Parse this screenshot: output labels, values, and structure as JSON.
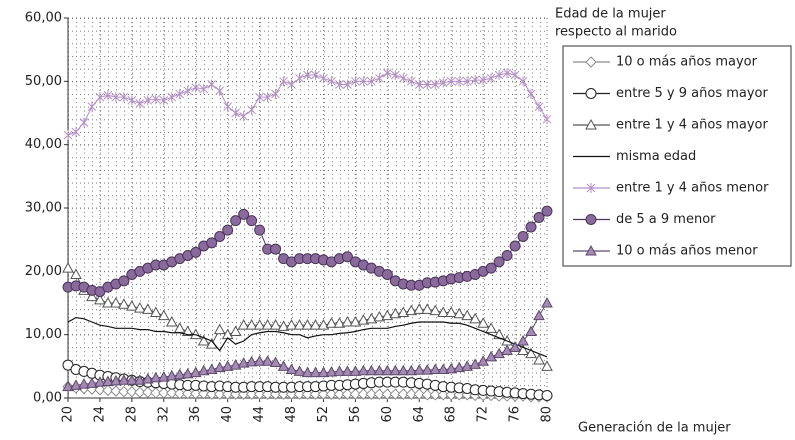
{
  "chart_data": {
    "type": "line",
    "legend_title": [
      "Edad de la mujer",
      "respecto al marido"
    ],
    "x_label": "Generación de la mujer",
    "x": [
      1920,
      1921,
      1922,
      1923,
      1924,
      1925,
      1926,
      1927,
      1928,
      1929,
      1930,
      1931,
      1932,
      1933,
      1934,
      1935,
      1936,
      1937,
      1938,
      1939,
      1940,
      1941,
      1942,
      1943,
      1944,
      1945,
      1946,
      1947,
      1948,
      1949,
      1950,
      1951,
      1952,
      1953,
      1954,
      1955,
      1956,
      1957,
      1958,
      1959,
      1960,
      1961,
      1962,
      1963,
      1964,
      1965,
      1966,
      1967,
      1968,
      1969,
      1970,
      1971,
      1972,
      1973,
      1974,
      1975,
      1976,
      1977,
      1978,
      1979,
      1980
    ],
    "xlim": [
      1920,
      1980
    ],
    "xticks": [
      {
        "value": 1920,
        "label": "20"
      },
      {
        "value": 1924,
        "label": "24"
      },
      {
        "value": 1928,
        "label": "28"
      },
      {
        "value": 1932,
        "label": "32"
      },
      {
        "value": 1936,
        "label": "36"
      },
      {
        "value": 1940,
        "label": "40"
      },
      {
        "value": 1944,
        "label": "44"
      },
      {
        "value": 1948,
        "label": "48"
      },
      {
        "value": 1952,
        "label": "52"
      },
      {
        "value": 1956,
        "label": "56"
      },
      {
        "value": 1960,
        "label": "60"
      },
      {
        "value": 1964,
        "label": "64"
      },
      {
        "value": 1968,
        "label": "68"
      },
      {
        "value": 1972,
        "label": "72"
      },
      {
        "value": 1976,
        "label": "76"
      },
      {
        "value": 1980,
        "label": "80"
      }
    ],
    "ylim": [
      0,
      60
    ],
    "yticks": [
      {
        "value": 0,
        "label": "0,00"
      },
      {
        "value": 10,
        "label": "10,00"
      },
      {
        "value": 20,
        "label": "20,00"
      },
      {
        "value": 30,
        "label": "30,00"
      },
      {
        "value": 40,
        "label": "40,00"
      },
      {
        "value": 50,
        "label": "50,00"
      },
      {
        "value": 60,
        "label": "60,00"
      }
    ],
    "grid": true,
    "legend": "right",
    "series": [
      {
        "name": "10 o más años mayor",
        "color": "#8c8c8c",
        "marker": "diamond",
        "fill": "#ffffff",
        "values": [
          1.8,
          1.6,
          1.5,
          1.4,
          1.3,
          1.2,
          1.1,
          1,
          1,
          0.9,
          0.9,
          0.8,
          0.8,
          0.8,
          0.7,
          0.7,
          0.7,
          0.7,
          0.6,
          0.6,
          0.6,
          0.6,
          0.6,
          0.6,
          0.6,
          0.6,
          0.6,
          0.6,
          0.6,
          0.6,
          0.6,
          0.6,
          0.6,
          0.6,
          0.6,
          0.6,
          0.6,
          0.6,
          0.6,
          0.6,
          0.6,
          0.6,
          0.6,
          0.6,
          0.6,
          0.5,
          0.5,
          0.5,
          0.5,
          0.5,
          0.5,
          0.4,
          0.4,
          0.4,
          0.3,
          0.3,
          0.3,
          0.3,
          0.2,
          0.2,
          0.2
        ]
      },
      {
        "name": "entre 5 y 9 años mayor",
        "color": "#222222",
        "marker": "circle",
        "fill": "#ffffff",
        "values": [
          5.2,
          4.5,
          4.2,
          3.9,
          3.6,
          3.4,
          3.2,
          3,
          2.8,
          2.6,
          2.5,
          2.4,
          2.3,
          2.2,
          2.1,
          2,
          2,
          1.9,
          1.8,
          1.9,
          1.8,
          1.7,
          1.7,
          1.8,
          1.8,
          1.8,
          1.7,
          1.7,
          1.7,
          1.8,
          1.8,
          1.8,
          1.9,
          2,
          2,
          2.1,
          2.2,
          2.3,
          2.4,
          2.5,
          2.5,
          2.5,
          2.5,
          2.4,
          2.3,
          2.2,
          2,
          1.8,
          1.7,
          1.6,
          1.5,
          1.3,
          1.2,
          1.1,
          1,
          0.9,
          0.8,
          0.7,
          0.6,
          0.5,
          0.4
        ]
      },
      {
        "name": "entre 1 y 4 años mayor",
        "color": "#555555",
        "marker": "triangle",
        "fill": "#ffffff",
        "values": [
          20.5,
          19.5,
          17,
          16,
          15.5,
          15,
          15,
          14.8,
          14.5,
          14.2,
          14,
          13.5,
          13,
          12,
          11,
          10.5,
          10,
          9,
          8.5,
          10.8,
          10,
          10.5,
          11.5,
          11.5,
          11.5,
          11.5,
          11.5,
          11.3,
          11.5,
          11.5,
          11.5,
          11.5,
          11.5,
          11.8,
          11.8,
          12,
          12,
          12.3,
          12.5,
          12.8,
          13,
          13.3,
          13.5,
          13.8,
          14,
          14,
          13.8,
          13.5,
          13.5,
          13.3,
          13,
          12.5,
          11.8,
          11,
          10,
          9,
          8,
          7.5,
          7,
          6,
          5
        ]
      },
      {
        "name": "misma edad",
        "color": "#111111",
        "marker": "none",
        "fill": "none",
        "values": [
          12,
          12.7,
          12.5,
          12,
          11.5,
          11.3,
          11,
          11,
          11,
          10.8,
          10.8,
          10.5,
          10.5,
          10.3,
          10.3,
          10,
          10,
          9.5,
          9,
          7.5,
          9.5,
          8.5,
          9,
          10,
          10.3,
          10.5,
          10.5,
          10.3,
          10,
          10,
          9.5,
          9.8,
          10,
          10,
          10.2,
          10.3,
          10.5,
          10.8,
          11,
          11,
          11,
          11.3,
          11.5,
          11.8,
          12,
          12,
          12,
          12,
          11.8,
          11.8,
          11.5,
          11,
          10.5,
          10,
          9.5,
          9,
          8.5,
          8,
          7.5,
          7,
          6.5
        ]
      },
      {
        "name": "entre 1 y 4 años menor",
        "color": "#b48fc7",
        "marker": "star",
        "fill": "none",
        "values": [
          41.5,
          42,
          43.5,
          46,
          47.5,
          47.8,
          47.5,
          47.5,
          47,
          46.5,
          47,
          47.2,
          47,
          47.5,
          48,
          48.5,
          49,
          48.8,
          49.5,
          48.5,
          46,
          45,
          44.5,
          45.5,
          47.5,
          47.5,
          48,
          50,
          49.5,
          50.5,
          51,
          51,
          50.5,
          50,
          49.5,
          49.5,
          50,
          50,
          50,
          50.5,
          51.3,
          51,
          50.5,
          50,
          49.5,
          49.5,
          49.5,
          49.8,
          50,
          50,
          50,
          50.2,
          50.2,
          50.5,
          51,
          51.3,
          51,
          50,
          48,
          46,
          44
        ]
      },
      {
        "name": "de 5 a 9 menor",
        "color": "#4a3658",
        "marker": "circle",
        "fill": "#8a6a9c",
        "values": [
          17.5,
          17.7,
          17.5,
          17,
          16.8,
          17.5,
          18,
          18.5,
          19.5,
          20,
          20.5,
          21,
          21,
          21.5,
          22,
          22.5,
          23,
          24,
          24.5,
          25.5,
          26.5,
          28,
          29,
          28,
          26.5,
          23.5,
          23.5,
          22,
          21.5,
          22,
          22,
          22,
          21.8,
          21.5,
          22,
          22.3,
          21.5,
          21,
          20.5,
          20,
          19.5,
          18.5,
          18,
          17.8,
          17.8,
          18.2,
          18.3,
          18.5,
          18.8,
          19,
          19.2,
          19.5,
          20,
          20.5,
          21.5,
          22.5,
          24,
          25.5,
          27,
          28.5,
          29.5
        ]
      },
      {
        "name": "10 o más años menor",
        "color": "#5e4a6a",
        "marker": "triangle",
        "fill": "#a58ab5",
        "values": [
          1.8,
          2,
          2.2,
          2.3,
          2.5,
          2.6,
          2.7,
          2.8,
          2.8,
          2.8,
          3,
          3.2,
          3.3,
          3.5,
          3.7,
          3.8,
          4,
          4.3,
          4.5,
          4.8,
          5,
          5.2,
          5.5,
          5.7,
          5.8,
          5.8,
          5.6,
          5,
          4.5,
          4.2,
          4,
          4,
          4,
          4.1,
          4.2,
          4.2,
          4.2,
          4.3,
          4.3,
          4.3,
          4.3,
          4.3,
          4.3,
          4.3,
          4.4,
          4.4,
          4.5,
          4.5,
          4.6,
          4.8,
          5,
          5.3,
          5.8,
          6.5,
          7,
          7.5,
          8,
          9,
          10.5,
          13,
          15
        ]
      }
    ]
  }
}
